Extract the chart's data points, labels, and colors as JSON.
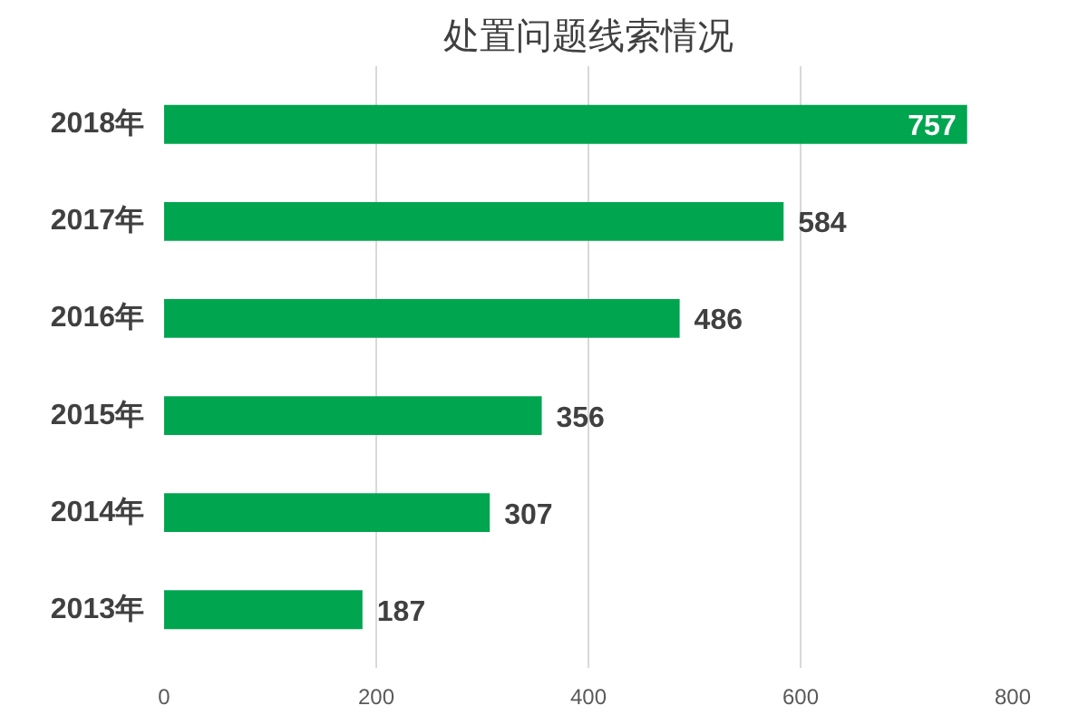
{
  "chart_data": {
    "type": "bar",
    "orientation": "horizontal",
    "title": "处置问题线索情况",
    "categories": [
      "2018年",
      "2017年",
      "2016年",
      "2015年",
      "2014年",
      "2013年"
    ],
    "values": [
      757,
      584,
      486,
      356,
      307,
      187
    ],
    "color": "#00a54f",
    "xlim": [
      0,
      800
    ],
    "xticks": [
      0,
      200,
      400,
      600,
      800
    ],
    "grid": "x",
    "data_labels": true
  }
}
